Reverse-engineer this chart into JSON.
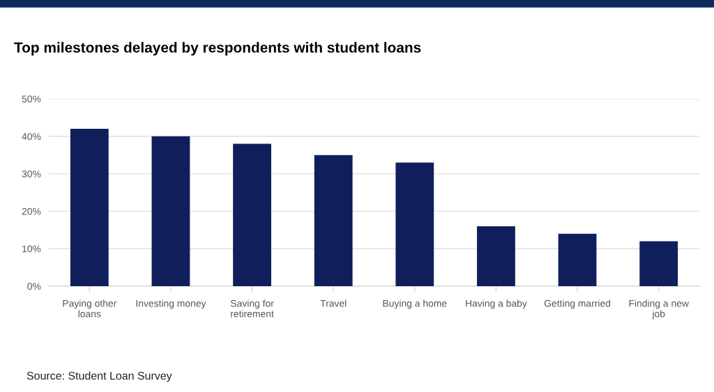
{
  "chart_data": {
    "type": "bar",
    "title": "Top milestones delayed by respondents with student loans",
    "categories": [
      "Paying other\nloans",
      "Investing money",
      "Saving for\nretirement",
      "Travel",
      "Buying a home",
      "Having a baby",
      "Getting married",
      "Finding a new\njob"
    ],
    "values": [
      42,
      40,
      38,
      35,
      33,
      16,
      14,
      12
    ],
    "color": "#111e5c",
    "ylim": [
      0,
      50
    ],
    "yticks": [
      {
        "value": 0,
        "label": "0%"
      },
      {
        "value": 10,
        "label": "10%"
      },
      {
        "value": 20,
        "label": "20%"
      },
      {
        "value": 30,
        "label": "30%"
      },
      {
        "value": 40,
        "label": "40%"
      },
      {
        "value": 50,
        "label": "50%"
      }
    ],
    "grid": "y",
    "annotations": [
      "Source: Student Loan Survey"
    ]
  }
}
